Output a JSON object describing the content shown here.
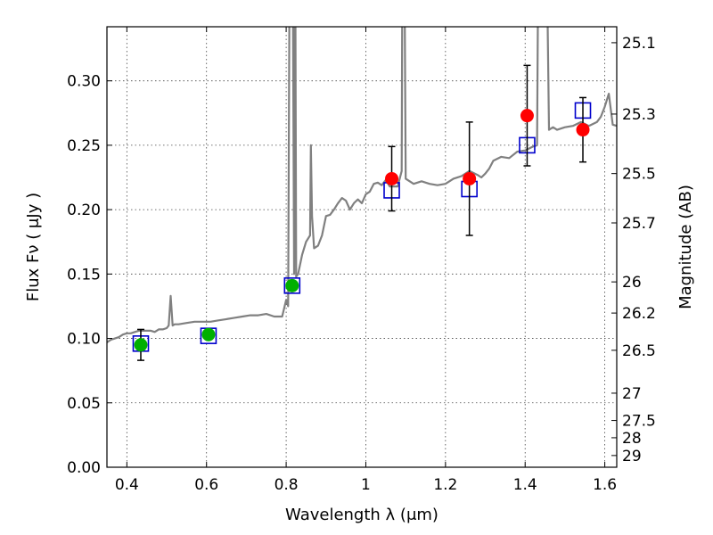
{
  "chart_data": {
    "type": "scatter",
    "title": "",
    "xlabel": "Wavelength  λ (μm)",
    "ylabel": "Flux  Fν  ( μJy )",
    "ylabel_right": "Magnitude (AB)",
    "xlim": [
      0.35,
      1.63
    ],
    "ylim": [
      0.0,
      0.342
    ],
    "grid": true,
    "x_ticks": [
      0.4,
      0.6,
      0.8,
      1.0,
      1.2,
      1.4,
      1.6
    ],
    "x_tick_labels": [
      "0.4",
      "0.6",
      "0.8",
      "1",
      "1.2",
      "1.4",
      "1.6"
    ],
    "y_ticks": [
      0.0,
      0.05,
      0.1,
      0.15,
      0.2,
      0.25,
      0.3
    ],
    "y_tick_labels": [
      "0.00",
      "0.05",
      "0.10",
      "0.15",
      "0.20",
      "0.25",
      "0.30"
    ],
    "right_ticks": [
      {
        "label": "25.1",
        "flux": 0.3296
      },
      {
        "label": "25.3",
        "flux": 0.2742
      },
      {
        "label": "25.5",
        "flux": 0.228
      },
      {
        "label": "25.7",
        "flux": 0.1897
      },
      {
        "label": "26",
        "flux": 0.1439
      },
      {
        "label": "26.2",
        "flux": 0.1197
      },
      {
        "label": "26.5",
        "flux": 0.0908
      },
      {
        "label": "27",
        "flux": 0.0575
      },
      {
        "label": "27.5",
        "flux": 0.0363
      },
      {
        "label": "28",
        "flux": 0.0229
      },
      {
        "label": "29",
        "flux": 0.0091
      }
    ],
    "colors": {
      "sed": "#808080",
      "detection_green": "#00b000",
      "detection_red": "#ff0000",
      "model_box": "#0000cc",
      "errorbar": "#000000"
    },
    "series": [
      {
        "name": "Model SED",
        "kind": "line",
        "x": [
          0.35,
          0.36,
          0.37,
          0.38,
          0.39,
          0.4,
          0.41,
          0.42,
          0.43,
          0.44,
          0.45,
          0.46,
          0.47,
          0.48,
          0.49,
          0.5,
          0.505,
          0.51,
          0.515,
          0.52,
          0.53,
          0.55,
          0.57,
          0.59,
          0.61,
          0.63,
          0.65,
          0.67,
          0.69,
          0.71,
          0.73,
          0.75,
          0.77,
          0.79,
          0.8,
          0.805,
          0.81,
          0.815,
          0.82,
          0.822,
          0.825,
          0.83,
          0.84,
          0.85,
          0.86,
          0.862,
          0.865,
          0.87,
          0.88,
          0.89,
          0.9,
          0.91,
          0.92,
          0.93,
          0.94,
          0.95,
          0.96,
          0.97,
          0.98,
          0.99,
          1.0,
          1.01,
          1.02,
          1.03,
          1.04,
          1.05,
          1.06,
          1.07,
          1.08,
          1.09,
          1.093,
          1.095,
          1.1,
          1.12,
          1.14,
          1.16,
          1.18,
          1.2,
          1.22,
          1.24,
          1.26,
          1.28,
          1.29,
          1.3,
          1.31,
          1.32,
          1.34,
          1.36,
          1.38,
          1.4,
          1.42,
          1.43,
          1.435,
          1.44,
          1.445,
          1.45,
          1.46,
          1.47,
          1.48,
          1.5,
          1.52,
          1.54,
          1.56,
          1.58,
          1.59,
          1.6,
          1.61,
          1.62,
          1.63
        ],
        "values": [
          0.097,
          0.099,
          0.1,
          0.101,
          0.103,
          0.104,
          0.104,
          0.105,
          0.106,
          0.106,
          0.106,
          0.106,
          0.105,
          0.107,
          0.107,
          0.108,
          0.11,
          0.133,
          0.11,
          0.111,
          0.111,
          0.112,
          0.113,
          0.113,
          0.113,
          0.114,
          0.115,
          0.116,
          0.117,
          0.118,
          0.118,
          0.119,
          0.117,
          0.117,
          0.13,
          0.125,
          0.5,
          0.5,
          0.15,
          0.5,
          0.148,
          0.15,
          0.165,
          0.175,
          0.18,
          0.25,
          0.195,
          0.17,
          0.172,
          0.18,
          0.195,
          0.196,
          0.2,
          0.205,
          0.209,
          0.207,
          0.2,
          0.205,
          0.208,
          0.205,
          0.212,
          0.214,
          0.22,
          0.221,
          0.219,
          0.223,
          0.218,
          0.218,
          0.218,
          0.23,
          0.5,
          0.5,
          0.224,
          0.22,
          0.222,
          0.22,
          0.219,
          0.22,
          0.224,
          0.226,
          0.23,
          0.227,
          0.225,
          0.228,
          0.232,
          0.238,
          0.241,
          0.24,
          0.245,
          0.246,
          0.249,
          0.25,
          0.5,
          0.5,
          0.5,
          0.5,
          0.262,
          0.264,
          0.262,
          0.264,
          0.265,
          0.268,
          0.265,
          0.268,
          0.272,
          0.28,
          0.29,
          0.266,
          0.265
        ]
      },
      {
        "name": "Model photometry",
        "kind": "box",
        "x": [
          0.435,
          0.605,
          0.815,
          1.065,
          1.26,
          1.405,
          1.545
        ],
        "values": [
          0.096,
          0.102,
          0.141,
          0.215,
          0.216,
          0.25,
          0.277
        ]
      },
      {
        "name": "Observed (optical)",
        "kind": "point-green",
        "x": [
          0.435,
          0.605,
          0.815
        ],
        "values": [
          0.095,
          0.103,
          0.141
        ],
        "errors": [
          0.012,
          0.0,
          0.0
        ]
      },
      {
        "name": "Observed (near-IR)",
        "kind": "point-red",
        "x": [
          1.065,
          1.26,
          1.405,
          1.545
        ],
        "values": [
          0.224,
          0.224,
          0.273,
          0.262
        ],
        "errors": [
          0.025,
          0.044,
          0.039,
          0.025
        ]
      }
    ]
  }
}
